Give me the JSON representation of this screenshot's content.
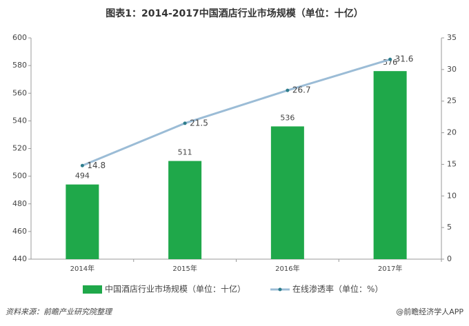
{
  "chart_data": {
    "type": "bar",
    "title": "图表1：2014-2017中国酒店行业市场规模（单位：十亿）",
    "categories": [
      "2014年",
      "2015年",
      "2016年",
      "2017年"
    ],
    "series": [
      {
        "name": "中国酒店行业市场规模（单位：十亿）",
        "type": "bar",
        "color": "#1fa84a",
        "values": [
          494,
          511,
          536,
          576
        ]
      },
      {
        "name": "在线渗透率（单位：%）",
        "type": "line",
        "axis": "y2",
        "color": "#9bbcd6",
        "marker_color": "#2e7d8c",
        "values": [
          14.8,
          21.5,
          26.7,
          31.6
        ]
      }
    ],
    "ylim": [
      440,
      600
    ],
    "yticks": [
      440,
      460,
      480,
      500,
      520,
      540,
      560,
      580,
      600
    ],
    "y2lim": [
      0,
      35
    ],
    "y2ticks": [
      0,
      5,
      10,
      15,
      20,
      25,
      30,
      35
    ],
    "source_note": "资料来源：前瞻产业研究院整理",
    "credit": "@前瞻经济学人APP"
  }
}
